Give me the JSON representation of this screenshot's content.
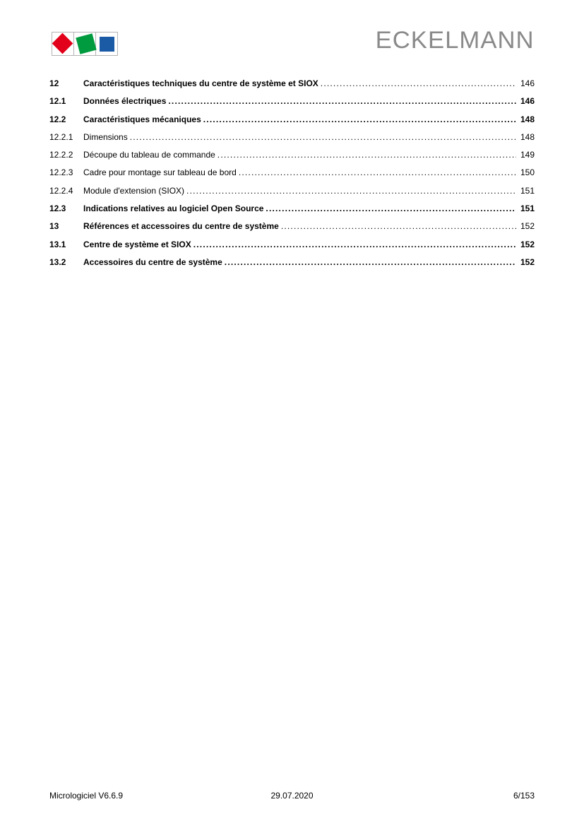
{
  "header": {
    "brand": "ECKELMANN",
    "logo": {
      "red": "#e2001a",
      "green": "#009b3e",
      "blue": "#1b5aa5"
    }
  },
  "toc": {
    "entries": [
      {
        "number": "12",
        "title": "Caractéristiques techniques du centre de système et SIOX",
        "page": "146",
        "level": "chapter"
      },
      {
        "number": "12.1",
        "title": "Données électriques",
        "page": "146",
        "level": "section"
      },
      {
        "number": "12.2",
        "title": "Caractéristiques mécaniques",
        "page": "148",
        "level": "section"
      },
      {
        "number": "12.2.1",
        "title": "Dimensions",
        "page": "148",
        "level": "subsection"
      },
      {
        "number": "12.2.2",
        "title": "Découpe du tableau de commande",
        "page": "149",
        "level": "subsection"
      },
      {
        "number": "12.2.3",
        "title": "Cadre pour montage sur tableau de bord",
        "page": "150",
        "level": "subsection"
      },
      {
        "number": "12.2.4",
        "title": "Module d'extension (SIOX)",
        "page": "151",
        "level": "subsection"
      },
      {
        "number": "12.3",
        "title": "Indications relatives au logiciel Open Source",
        "page": "151",
        "level": "section"
      },
      {
        "number": "13",
        "title": "Références et accessoires du centre de système",
        "page": "152",
        "level": "chapter"
      },
      {
        "number": "13.1",
        "title": "Centre de système et SIOX",
        "page": "152",
        "level": "section"
      },
      {
        "number": "13.2",
        "title": "Accessoires du centre de système",
        "page": "152",
        "level": "section"
      }
    ]
  },
  "footer": {
    "left": "Micrologiciel V6.6.9",
    "center": "29.07.2020",
    "right": "6/153"
  }
}
